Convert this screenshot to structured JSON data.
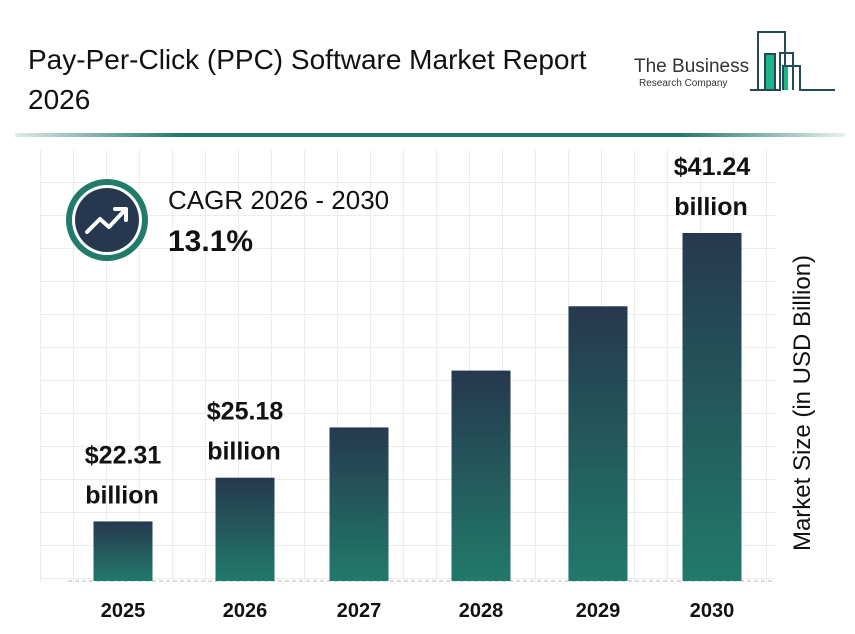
{
  "header": {
    "title": "Pay-Per-Click (PPC) Software Market Report 2026",
    "logo_line1": "The Business",
    "logo_line2": "Research Company"
  },
  "cagr": {
    "label": "CAGR 2026 - 2030",
    "value": "13.1%",
    "icon": "trend-up-arrow-icon"
  },
  "colors": {
    "bar_top": "#26384f",
    "bar_bottom": "#217a6a",
    "accent": "#23786a"
  },
  "chart_data": {
    "type": "bar",
    "title": "Pay-Per-Click (PPC) Software Market Report 2026",
    "xlabel": "",
    "ylabel": "Market Size (in USD Billion)",
    "categories": [
      "2025",
      "2026",
      "2027",
      "2028",
      "2029",
      "2030"
    ],
    "values": [
      22.31,
      25.18,
      28.48,
      32.21,
      36.43,
      41.24
    ],
    "data_labels": [
      {
        "index": 0,
        "line1": "$22.31",
        "line2": "billion"
      },
      {
        "index": 1,
        "line1": "$25.18",
        "line2": "billion"
      },
      {
        "index": 5,
        "line1": "$41.24",
        "line2": "billion"
      }
    ],
    "grid": true,
    "legend": "none"
  }
}
